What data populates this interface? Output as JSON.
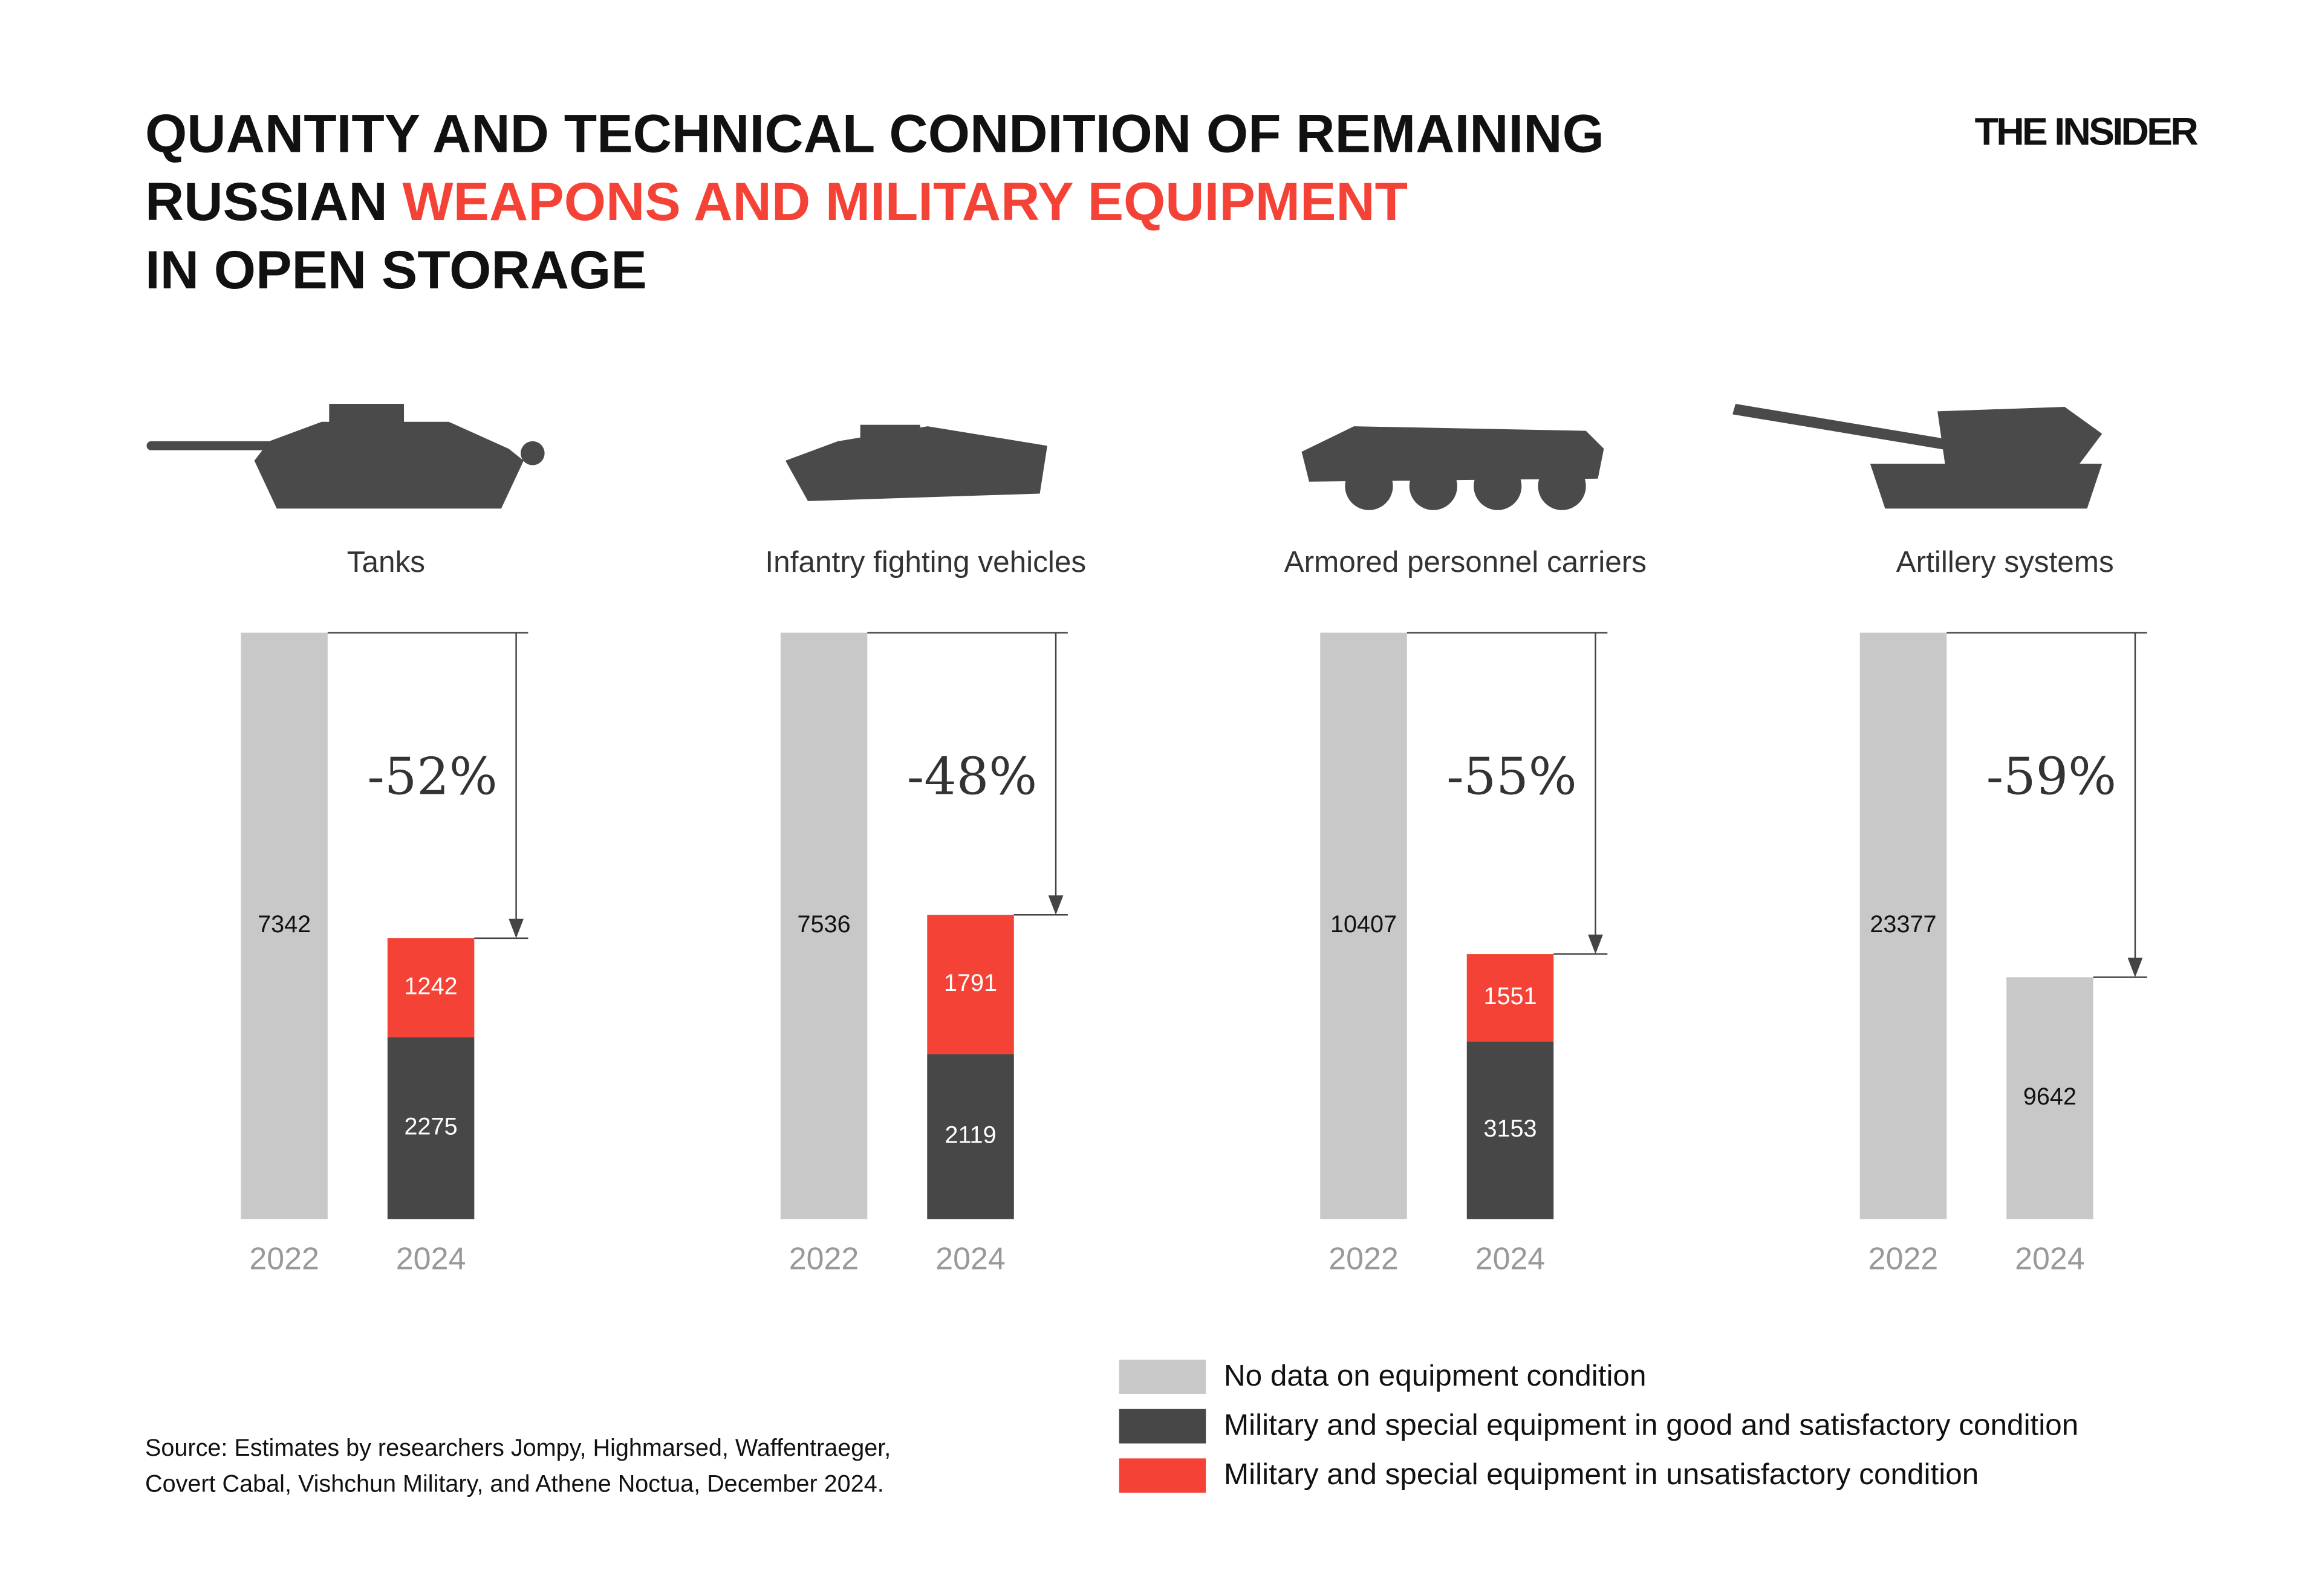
{
  "title_lines": [
    [
      {
        "text": "QUANTITY AND TECHNICAL CONDITION OF REMAINING",
        "color": "#111111"
      }
    ],
    [
      {
        "text": "RUSSIAN",
        "color": "#111111"
      },
      {
        "text": "WEAPONS AND MILITARY EQUIPMENT",
        "color": "#f44336"
      }
    ],
    [
      {
        "text": "IN OPEN STORAGE",
        "color": "#111111"
      }
    ]
  ],
  "brand": "THE INSIDER",
  "source": [
    "Source: Estimates by researchers Jompy, Highmarsed, Waffentraeger,",
    "Covert Cabal, Vishchun Military, and Athene Noctua, December 2024."
  ],
  "chart_data": {
    "type": "bar",
    "stacked": true,
    "groups": [
      "Tanks",
      "Infantry fighting vehicles",
      "Armored personnel carriers",
      "Artillery systems"
    ],
    "categories": [
      "2022",
      "2024"
    ],
    "annotations": [
      "-52%",
      "-48%",
      "-55%",
      "-59%"
    ],
    "series": [
      {
        "name": "No data on equipment condition",
        "color": "#c8c8c8",
        "label_color": "#111111",
        "values": [
          [
            7342,
            null
          ],
          [
            7536,
            null
          ],
          [
            10407,
            null
          ],
          [
            23377,
            9642
          ]
        ]
      },
      {
        "name": "Military and special equipment in good and satisfactory condition",
        "color": "#474747",
        "label_color": "#ffffff",
        "values": [
          [
            null,
            2275
          ],
          [
            null,
            2119
          ],
          [
            null,
            3153
          ],
          [
            null,
            null
          ]
        ]
      },
      {
        "name": "Military and special equipment in unsatisfactory condition",
        "color": "#f44336",
        "label_color": "#ffffff",
        "values": [
          [
            null,
            1242
          ],
          [
            null,
            1791
          ],
          [
            null,
            1551
          ],
          [
            null,
            null
          ]
        ]
      }
    ]
  }
}
